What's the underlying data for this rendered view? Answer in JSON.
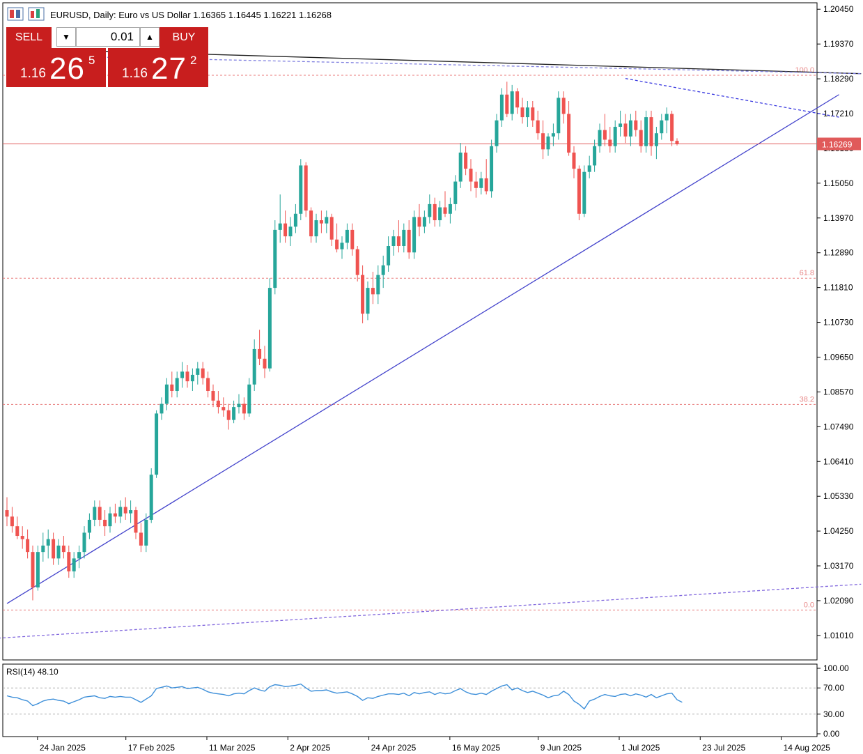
{
  "header": {
    "title": "EURUSD, Daily:  Euro vs US Dollar  1.16365 1.16445 1.16221 1.16268"
  },
  "trade_panel": {
    "sell_label": "SELL",
    "buy_label": "BUY",
    "lot_value": "0.01",
    "sell_big": "1.16",
    "sell_main": "26",
    "sell_sup": "5",
    "buy_big": "1.16",
    "buy_main": "27",
    "buy_sup": "2"
  },
  "chart_data": [
    {
      "type": "candlestick",
      "symbol": "EURUSD",
      "timeframe": "Daily",
      "title": "EURUSD, Daily:  Euro vs US Dollar  1.16365 1.16445 1.16221 1.16268",
      "ylim": [
        1.0025,
        1.2065
      ],
      "y_ticks": [
        "1.20450",
        "1.19370",
        "1.18290",
        "1.17210",
        "1.16130",
        "1.15050",
        "1.13970",
        "1.12890",
        "1.11810",
        "1.10730",
        "1.09650",
        "1.08570",
        "1.07490",
        "1.06410",
        "1.05330",
        "1.04250",
        "1.03170",
        "1.02090",
        "1.01010"
      ],
      "x_ticks": [
        "24 Jan 2025",
        "17 Feb 2025",
        "11 Mar 2025",
        "2 Apr 2025",
        "24 Apr 2025",
        "16 May 2025",
        "9 Jun 2025",
        "1 Jul 2025",
        "23 Jul 2025",
        "14 Aug 2025"
      ],
      "current_price": "1.16269",
      "fibonacci_levels": [
        {
          "label": "100.0",
          "price": 1.184
        },
        {
          "label": "61.8",
          "price": 1.121
        },
        {
          "label": "38.2",
          "price": 1.0818
        },
        {
          "label": "0.0",
          "price": 1.018
        }
      ],
      "trendlines": [
        {
          "style": "solid",
          "color": "#4444cc",
          "from": [
            "2025-01-14",
            1.02
          ],
          "to": [
            "2025-08-28",
            1.178
          ]
        },
        {
          "style": "dashed",
          "color": "#3a3ae0",
          "from": [
            "2025-07-01",
            1.183
          ],
          "to": [
            "2025-08-28",
            1.171
          ]
        },
        {
          "style": "solid",
          "color": "#222222",
          "from": [
            "2025-01-24",
            1.192
          ],
          "to": [
            "2025-09-03",
            1.1845
          ]
        },
        {
          "style": "dashed",
          "color": "#8080e0",
          "from": [
            "2025-01-24",
            1.19
          ],
          "to": [
            "2025-09-03",
            1.1845
          ]
        },
        {
          "style": "dashed",
          "color": "#8066dd",
          "from": [
            "2025-01-01",
            1.0085
          ],
          "to": [
            "2025-09-03",
            1.026
          ]
        }
      ],
      "candles": [
        [
          1.049,
          1.053,
          1.044,
          1.047
        ],
        [
          1.047,
          1.05,
          1.042,
          1.044
        ],
        [
          1.044,
          1.047,
          1.04,
          1.041
        ],
        [
          1.041,
          1.044,
          1.037,
          1.04
        ],
        [
          1.04,
          1.043,
          1.034,
          1.036
        ],
        [
          1.036,
          1.038,
          1.021,
          1.025
        ],
        [
          1.025,
          1.038,
          1.024,
          1.036
        ],
        [
          1.036,
          1.042,
          1.033,
          1.038
        ],
        [
          1.038,
          1.043,
          1.034,
          1.04
        ],
        [
          1.04,
          1.042,
          1.032,
          1.034
        ],
        [
          1.034,
          1.04,
          1.032,
          1.038
        ],
        [
          1.038,
          1.041,
          1.034,
          1.036
        ],
        [
          1.036,
          1.038,
          1.028,
          1.03
        ],
        [
          1.03,
          1.036,
          1.028,
          1.034
        ],
        [
          1.034,
          1.038,
          1.031,
          1.036
        ],
        [
          1.036,
          1.044,
          1.034,
          1.042
        ],
        [
          1.042,
          1.048,
          1.04,
          1.046
        ],
        [
          1.046,
          1.052,
          1.044,
          1.05
        ],
        [
          1.05,
          1.052,
          1.044,
          1.046
        ],
        [
          1.046,
          1.049,
          1.041,
          1.044
        ],
        [
          1.044,
          1.05,
          1.042,
          1.048
        ],
        [
          1.048,
          1.051,
          1.045,
          1.047
        ],
        [
          1.047,
          1.052,
          1.045,
          1.05
        ],
        [
          1.05,
          1.053,
          1.046,
          1.048
        ],
        [
          1.048,
          1.052,
          1.045,
          1.049
        ],
        [
          1.049,
          1.05,
          1.04,
          1.042
        ],
        [
          1.042,
          1.045,
          1.036,
          1.038
        ],
        [
          1.038,
          1.048,
          1.036,
          1.046
        ],
        [
          1.046,
          1.062,
          1.045,
          1.06
        ],
        [
          1.06,
          1.08,
          1.059,
          1.079
        ],
        [
          1.079,
          1.084,
          1.077,
          1.082
        ],
        [
          1.082,
          1.09,
          1.08,
          1.088
        ],
        [
          1.088,
          1.092,
          1.084,
          1.086
        ],
        [
          1.086,
          1.092,
          1.084,
          1.09
        ],
        [
          1.09,
          1.095,
          1.087,
          1.092
        ],
        [
          1.092,
          1.094,
          1.087,
          1.089
        ],
        [
          1.089,
          1.093,
          1.086,
          1.091
        ],
        [
          1.091,
          1.095,
          1.088,
          1.093
        ],
        [
          1.093,
          1.095,
          1.088,
          1.09
        ],
        [
          1.09,
          1.092,
          1.084,
          1.086
        ],
        [
          1.086,
          1.088,
          1.081,
          1.083
        ],
        [
          1.083,
          1.086,
          1.079,
          1.081
        ],
        [
          1.081,
          1.084,
          1.078,
          1.08
        ],
        [
          1.08,
          1.082,
          1.074,
          1.077
        ],
        [
          1.077,
          1.083,
          1.076,
          1.081
        ],
        [
          1.081,
          1.085,
          1.079,
          1.082
        ],
        [
          1.082,
          1.084,
          1.077,
          1.079
        ],
        [
          1.079,
          1.09,
          1.078,
          1.088
        ],
        [
          1.088,
          1.102,
          1.086,
          1.099
        ],
        [
          1.099,
          1.105,
          1.094,
          1.096
        ],
        [
          1.096,
          1.1,
          1.09,
          1.093
        ],
        [
          1.093,
          1.121,
          1.092,
          1.118
        ],
        [
          1.118,
          1.139,
          1.116,
          1.136
        ],
        [
          1.136,
          1.147,
          1.132,
          1.138
        ],
        [
          1.138,
          1.142,
          1.132,
          1.134
        ],
        [
          1.134,
          1.14,
          1.131,
          1.137
        ],
        [
          1.137,
          1.144,
          1.135,
          1.141
        ],
        [
          1.141,
          1.158,
          1.139,
          1.156
        ],
        [
          1.156,
          1.157,
          1.14,
          1.142
        ],
        [
          1.142,
          1.143,
          1.132,
          1.134
        ],
        [
          1.134,
          1.141,
          1.132,
          1.139
        ],
        [
          1.139,
          1.142,
          1.135,
          1.138
        ],
        [
          1.138,
          1.142,
          1.135,
          1.14
        ],
        [
          1.14,
          1.141,
          1.131,
          1.133
        ],
        [
          1.133,
          1.138,
          1.129,
          1.13
        ],
        [
          1.13,
          1.134,
          1.127,
          1.132
        ],
        [
          1.132,
          1.138,
          1.13,
          1.136
        ],
        [
          1.136,
          1.138,
          1.128,
          1.13
        ],
        [
          1.13,
          1.131,
          1.12,
          1.122
        ],
        [
          1.122,
          1.125,
          1.107,
          1.11
        ],
        [
          1.11,
          1.12,
          1.108,
          1.118
        ],
        [
          1.118,
          1.123,
          1.113,
          1.116
        ],
        [
          1.116,
          1.125,
          1.113,
          1.122
        ],
        [
          1.122,
          1.128,
          1.118,
          1.125
        ],
        [
          1.125,
          1.134,
          1.123,
          1.131
        ],
        [
          1.131,
          1.136,
          1.128,
          1.134
        ],
        [
          1.134,
          1.139,
          1.129,
          1.131
        ],
        [
          1.131,
          1.138,
          1.129,
          1.136
        ],
        [
          1.136,
          1.139,
          1.127,
          1.129
        ],
        [
          1.129,
          1.142,
          1.127,
          1.14
        ],
        [
          1.14,
          1.144,
          1.134,
          1.137
        ],
        [
          1.137,
          1.142,
          1.135,
          1.14
        ],
        [
          1.14,
          1.147,
          1.138,
          1.144
        ],
        [
          1.144,
          1.146,
          1.137,
          1.139
        ],
        [
          1.139,
          1.145,
          1.137,
          1.143
        ],
        [
          1.143,
          1.148,
          1.14,
          1.141
        ],
        [
          1.141,
          1.146,
          1.138,
          1.144
        ],
        [
          1.144,
          1.153,
          1.142,
          1.151
        ],
        [
          1.151,
          1.163,
          1.149,
          1.16
        ],
        [
          1.16,
          1.162,
          1.153,
          1.155
        ],
        [
          1.155,
          1.158,
          1.148,
          1.151
        ],
        [
          1.151,
          1.154,
          1.146,
          1.149
        ],
        [
          1.149,
          1.154,
          1.147,
          1.152
        ],
        [
          1.152,
          1.158,
          1.147,
          1.148
        ],
        [
          1.148,
          1.164,
          1.146,
          1.162
        ],
        [
          1.162,
          1.172,
          1.16,
          1.17
        ],
        [
          1.17,
          1.18,
          1.168,
          1.178
        ],
        [
          1.178,
          1.182,
          1.171,
          1.172
        ],
        [
          1.172,
          1.181,
          1.17,
          1.179
        ],
        [
          1.179,
          1.18,
          1.172,
          1.174
        ],
        [
          1.174,
          1.177,
          1.169,
          1.171
        ],
        [
          1.171,
          1.176,
          1.168,
          1.174
        ],
        [
          1.174,
          1.176,
          1.168,
          1.17
        ],
        [
          1.17,
          1.173,
          1.164,
          1.166
        ],
        [
          1.166,
          1.17,
          1.158,
          1.161
        ],
        [
          1.161,
          1.166,
          1.159,
          1.165
        ],
        [
          1.165,
          1.169,
          1.162,
          1.166
        ],
        [
          1.166,
          1.179,
          1.164,
          1.177
        ],
        [
          1.177,
          1.179,
          1.169,
          1.172
        ],
        [
          1.172,
          1.176,
          1.159,
          1.16
        ],
        [
          1.16,
          1.162,
          1.152,
          1.155
        ],
        [
          1.155,
          1.156,
          1.139,
          1.141
        ],
        [
          1.141,
          1.156,
          1.14,
          1.154
        ],
        [
          1.154,
          1.159,
          1.152,
          1.156
        ],
        [
          1.156,
          1.164,
          1.154,
          1.162
        ],
        [
          1.162,
          1.169,
          1.16,
          1.167
        ],
        [
          1.167,
          1.172,
          1.162,
          1.164
        ],
        [
          1.164,
          1.168,
          1.16,
          1.162
        ],
        [
          1.162,
          1.17,
          1.16,
          1.168
        ],
        [
          1.168,
          1.173,
          1.165,
          1.169
        ],
        [
          1.169,
          1.172,
          1.163,
          1.165
        ],
        [
          1.165,
          1.172,
          1.162,
          1.17
        ],
        [
          1.17,
          1.173,
          1.165,
          1.167
        ],
        [
          1.167,
          1.17,
          1.16,
          1.162
        ],
        [
          1.162,
          1.173,
          1.16,
          1.171
        ],
        [
          1.171,
          1.173,
          1.159,
          1.162
        ],
        [
          1.162,
          1.168,
          1.158,
          1.166
        ],
        [
          1.166,
          1.172,
          1.164,
          1.17
        ],
        [
          1.17,
          1.174,
          1.166,
          1.172
        ],
        [
          1.172,
          1.173,
          1.162,
          1.1636
        ],
        [
          1.16365,
          1.16445,
          1.16221,
          1.16268
        ]
      ]
    },
    {
      "type": "line",
      "title": "RSI(14) 48.10",
      "ylim": [
        0,
        100
      ],
      "y_ticks": [
        "100.00",
        "70.00",
        "30.00",
        "0.00"
      ],
      "levels": [
        70,
        30
      ],
      "values": [
        58,
        56,
        55,
        52,
        50,
        43,
        46,
        50,
        52,
        53,
        51,
        50,
        46,
        49,
        52,
        56,
        57,
        58,
        55,
        54,
        57,
        56,
        57,
        56,
        56,
        52,
        48,
        53,
        58,
        69,
        71,
        73,
        70,
        71,
        72,
        69,
        70,
        71,
        68,
        64,
        62,
        61,
        60,
        58,
        61,
        62,
        61,
        66,
        70,
        67,
        65,
        72,
        75,
        74,
        72,
        73,
        74,
        76,
        70,
        65,
        66,
        66,
        67,
        64,
        62,
        63,
        64,
        61,
        57,
        51,
        55,
        54,
        57,
        59,
        61,
        61,
        60,
        62,
        58,
        63,
        61,
        63,
        64,
        60,
        63,
        61,
        62,
        66,
        69,
        64,
        61,
        60,
        62,
        60,
        65,
        69,
        73,
        75,
        67,
        70,
        66,
        63,
        65,
        62,
        59,
        55,
        58,
        59,
        65,
        60,
        50,
        45,
        38,
        50,
        53,
        57,
        60,
        58,
        57,
        60,
        61,
        58,
        61,
        59,
        56,
        60,
        55,
        58,
        61,
        62,
        52,
        48.1
      ]
    }
  ]
}
